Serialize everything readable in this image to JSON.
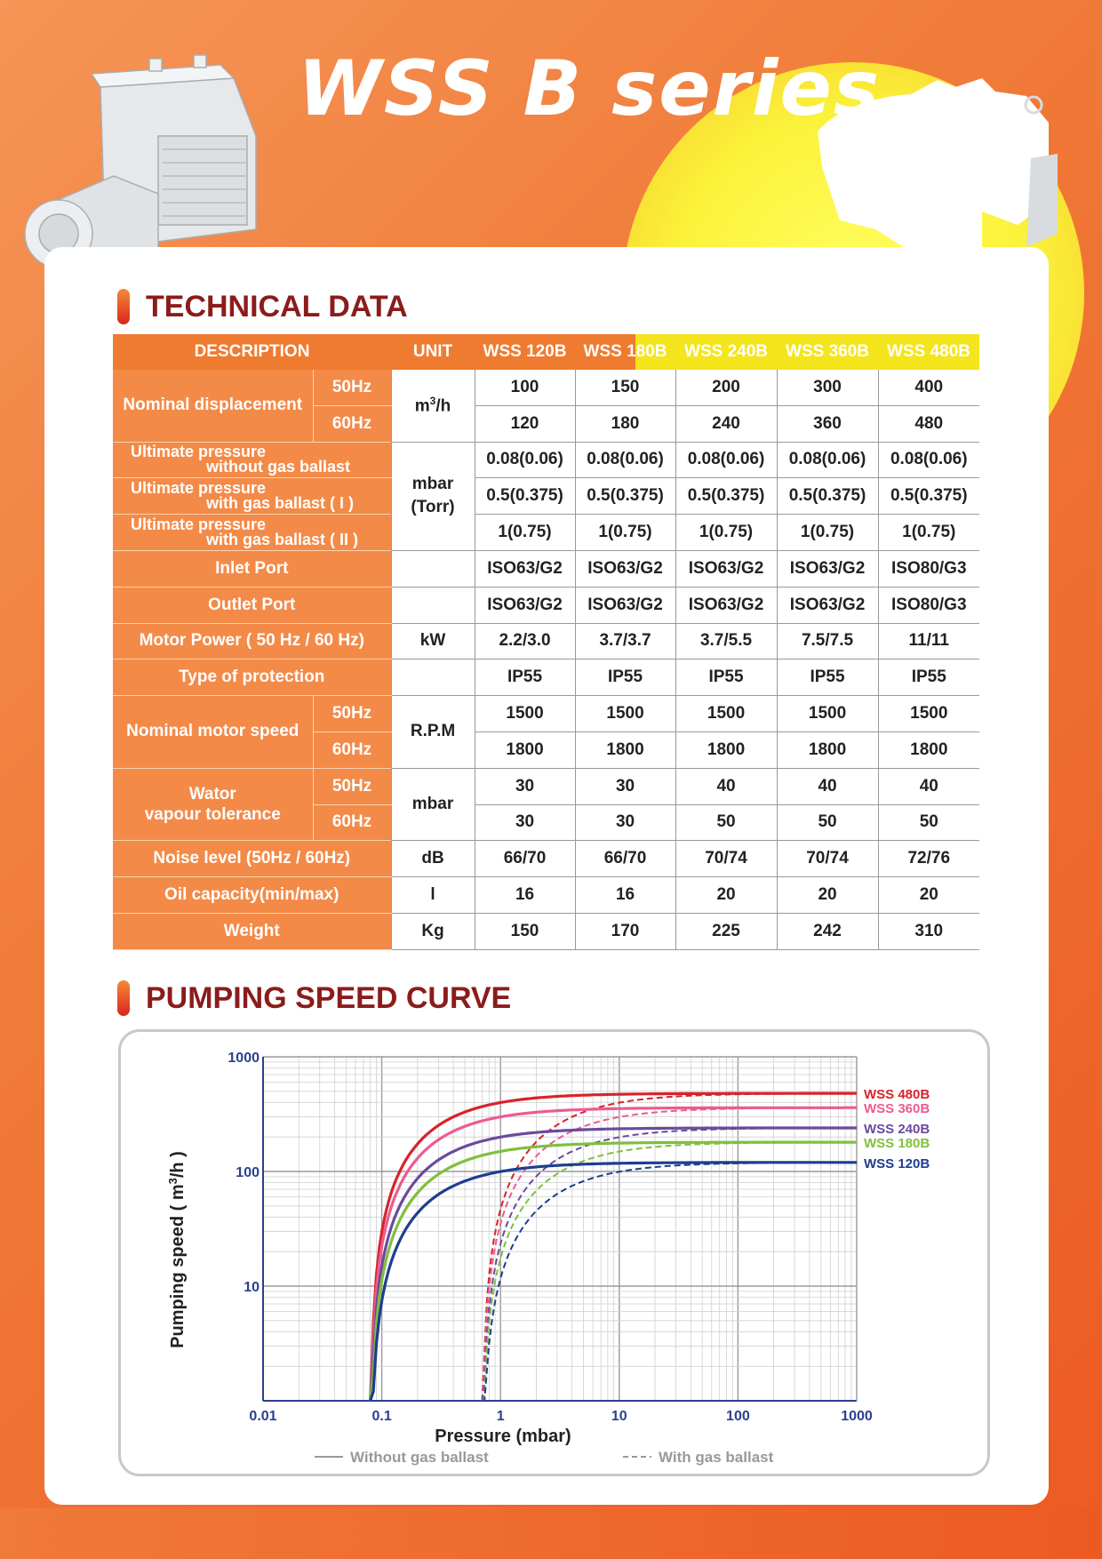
{
  "title": "WSS B series",
  "sections": {
    "technical": "TECHNICAL DATA",
    "curve": "PUMPING SPEED CURVE"
  },
  "table": {
    "headers": {
      "description": "DESCRIPTION",
      "unit": "UNIT",
      "models": [
        "WSS 120B",
        "WSS 180B",
        "WSS 240B",
        "WSS 360B",
        "WSS 480B"
      ]
    },
    "rows": {
      "nominal_displacement": {
        "label": "Nominal displacement",
        "unit_base": "m",
        "unit_sup": "3",
        "unit_tail": "/h",
        "hz50": "50Hz",
        "hz60": "60Hz",
        "v50": [
          "100",
          "150",
          "200",
          "300",
          "400"
        ],
        "v60": [
          "120",
          "180",
          "240",
          "360",
          "480"
        ]
      },
      "up_no_ballast": {
        "label1": "Ultimate pressure",
        "label2": "without gas ballast",
        "values": [
          "0.08(0.06)",
          "0.08(0.06)",
          "0.08(0.06)",
          "0.08(0.06)",
          "0.08(0.06)"
        ]
      },
      "up_ballast1": {
        "label1": "Ultimate pressure",
        "label2": "with gas ballast ( I )",
        "values": [
          "0.5(0.375)",
          "0.5(0.375)",
          "0.5(0.375)",
          "0.5(0.375)",
          "0.5(0.375)"
        ]
      },
      "up_ballast2": {
        "label1": "Ultimate pressure",
        "label2": "with gas ballast ( II )",
        "values": [
          "1(0.75)",
          "1(0.75)",
          "1(0.75)",
          "1(0.75)",
          "1(0.75)"
        ]
      },
      "pressure_unit1": "mbar",
      "pressure_unit2": "(Torr)",
      "inlet": {
        "label": "Inlet Port",
        "values": [
          "ISO63/G2",
          "ISO63/G2",
          "ISO63/G2",
          "ISO63/G2",
          "ISO80/G3"
        ]
      },
      "outlet": {
        "label": "Outlet Port",
        "values": [
          "ISO63/G2",
          "ISO63/G2",
          "ISO63/G2",
          "ISO63/G2",
          "ISO80/G3"
        ]
      },
      "motor_power": {
        "label": "Motor Power ( 50 Hz / 60 Hz)",
        "unit": "kW",
        "values": [
          "2.2/3.0",
          "3.7/3.7",
          "3.7/5.5",
          "7.5/7.5",
          "11/11"
        ]
      },
      "protection": {
        "label": "Type of protection",
        "values": [
          "IP55",
          "IP55",
          "IP55",
          "IP55",
          "IP55"
        ]
      },
      "motor_speed": {
        "label": "Nominal motor speed",
        "unit": "R.P.M",
        "hz50": "50Hz",
        "hz60": "60Hz",
        "v50": [
          "1500",
          "1500",
          "1500",
          "1500",
          "1500"
        ],
        "v60": [
          "1800",
          "1800",
          "1800",
          "1800",
          "1800"
        ]
      },
      "vapour": {
        "label1": "Wator",
        "label2": "vapour tolerance",
        "unit": "mbar",
        "hz50": "50Hz",
        "hz60": "60Hz",
        "v50": [
          "30",
          "30",
          "40",
          "40",
          "40"
        ],
        "v60": [
          "30",
          "30",
          "50",
          "50",
          "50"
        ]
      },
      "noise": {
        "label": "Noise level (50Hz / 60Hz)",
        "unit": "dB",
        "values": [
          "66/70",
          "66/70",
          "70/74",
          "70/74",
          "72/76"
        ]
      },
      "oil": {
        "label": "Oil capacity(min/max)",
        "unit": "l",
        "values": [
          "16",
          "16",
          "20",
          "20",
          "20"
        ]
      },
      "weight": {
        "label": "Weight",
        "unit": "Kg",
        "values": [
          "150",
          "170",
          "225",
          "242",
          "310"
        ]
      }
    }
  },
  "chart_data": {
    "type": "line",
    "xscale": "log",
    "yscale": "log",
    "xlim": [
      0.01,
      1000
    ],
    "ylim": [
      1,
      1000
    ],
    "xticks": [
      "0.01",
      "0.1",
      "1",
      "10",
      "100",
      "1000"
    ],
    "yticks": [
      "10",
      "100",
      "1000"
    ],
    "xlabel": "Pressure (mbar)",
    "ylabel_main": "Pumping speed ( m",
    "ylabel_sup": "3",
    "ylabel_tail": "/h )",
    "legend": {
      "solid": "Without gas ballast",
      "dashed": "With gas ballast"
    },
    "ultimate_without_ballast": 0.08,
    "ultimate_with_ballast": 0.7,
    "series": [
      {
        "name": "WSS 480B",
        "color": "#d8232a",
        "nominal": 480
      },
      {
        "name": "WSS 360B",
        "color": "#ec5b92",
        "nominal": 360
      },
      {
        "name": "WSS 240B",
        "color": "#6a4a9c",
        "nominal": 240
      },
      {
        "name": "WSS 180B",
        "color": "#7fbf3c",
        "nominal": 180
      },
      {
        "name": "WSS 120B",
        "color": "#1e3d8f",
        "nominal": 120
      }
    ]
  },
  "colors": {
    "accent": "#f48a48",
    "heading": "#8b1c1c",
    "highlight": "#f4e51c"
  }
}
